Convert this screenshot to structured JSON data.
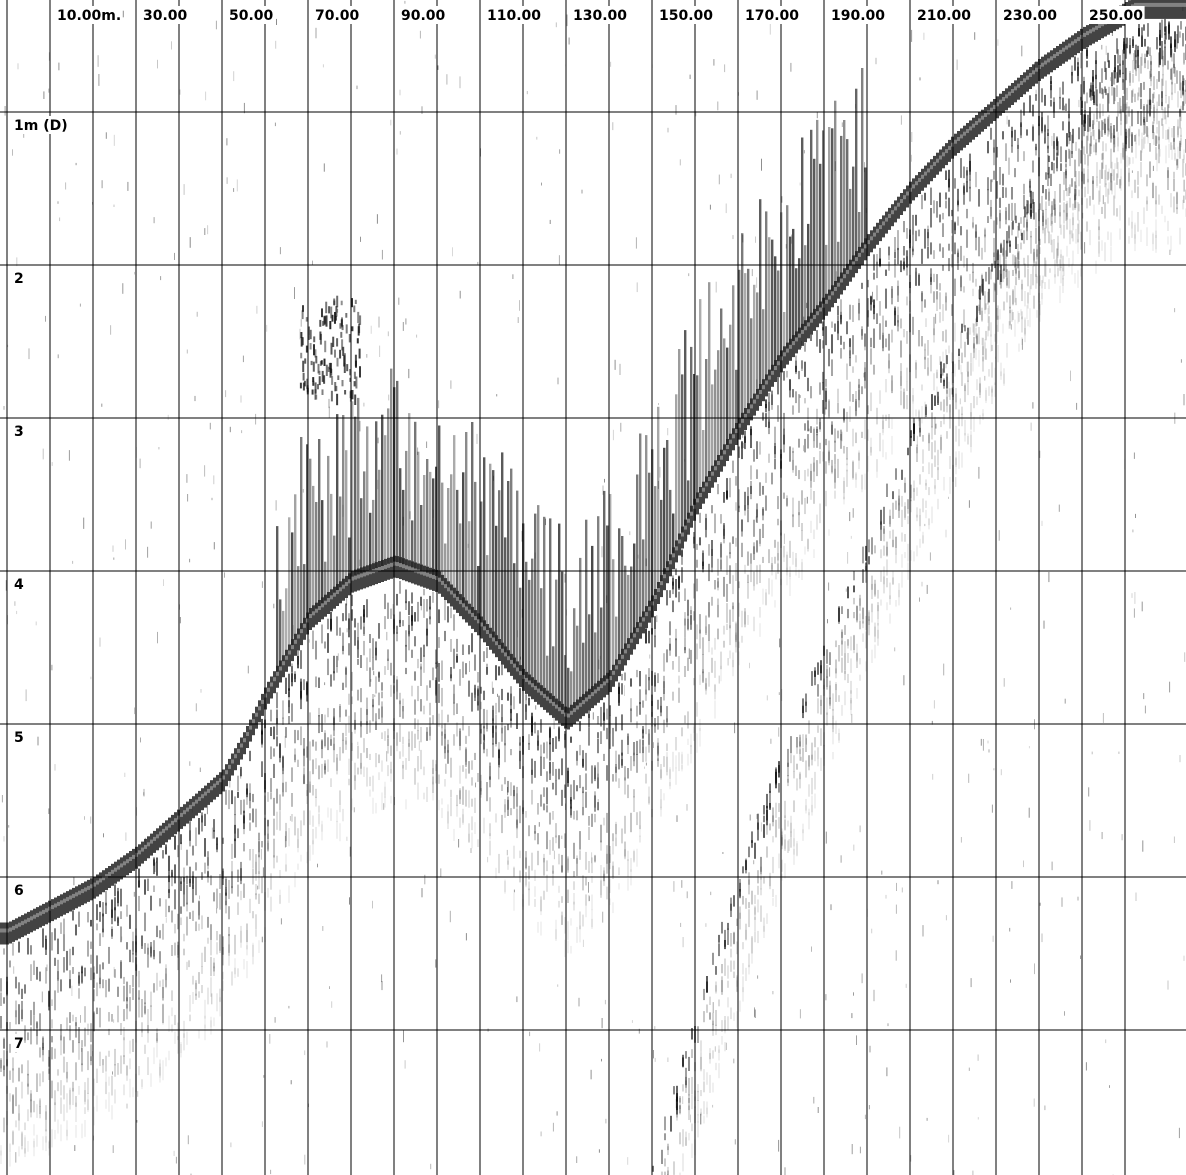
{
  "chart_data": {
    "type": "heatmap",
    "colormap": "grayscale (white = no return, black = strong return)",
    "x_axis": {
      "unit": "m",
      "position": "top",
      "tick_labels": [
        "10.00m.",
        "30.00",
        "50.00",
        "70.00",
        "90.00",
        "110.00",
        "130.00",
        "150.00",
        "170.00",
        "190.00",
        "210.00",
        "230.00",
        "250.00"
      ],
      "tick_values": [
        10,
        30,
        50,
        70,
        90,
        110,
        130,
        150,
        170,
        190,
        210,
        230,
        250
      ],
      "minor_gridline_interval": 10,
      "range": [
        0,
        262
      ]
    },
    "y_axis": {
      "unit": "m",
      "position": "left",
      "inverted": true,
      "tick_labels": [
        "1m (D)",
        "2",
        "3",
        "4",
        "5",
        "6",
        "7"
      ],
      "tick_values": [
        1,
        2,
        3,
        4,
        5,
        6,
        7
      ],
      "range": [
        0.26,
        7.9
      ]
    },
    "grid": true,
    "bottom_profile": {
      "x": [
        0,
        10,
        20,
        30,
        40,
        50,
        55,
        60,
        65,
        70,
        80,
        90,
        100,
        110,
        120,
        130,
        140,
        150,
        160,
        170,
        180,
        190,
        200,
        210,
        220,
        230,
        240,
        250,
        262
      ],
      "depth": [
        6.35,
        6.2,
        6.05,
        5.85,
        5.6,
        5.35,
        5.1,
        4.8,
        4.55,
        4.3,
        4.05,
        3.95,
        4.05,
        4.35,
        4.7,
        4.95,
        4.7,
        4.2,
        3.55,
        3.05,
        2.6,
        2.25,
        1.85,
        1.5,
        1.2,
        0.95,
        0.7,
        0.5,
        0.3
      ]
    },
    "secondary_return_profile": {
      "x": [
        150,
        160,
        170,
        180,
        190,
        200,
        210,
        220,
        230,
        240,
        250,
        262
      ],
      "depth": [
        7.9,
        6.9,
        6.0,
        5.2,
        4.5,
        3.8,
        3.1,
        2.5,
        1.95,
        1.45,
        0.95,
        0.45
      ]
    },
    "fish_school": {
      "x": [
        68,
        82
      ],
      "depth": [
        2.2,
        2.85
      ]
    }
  }
}
